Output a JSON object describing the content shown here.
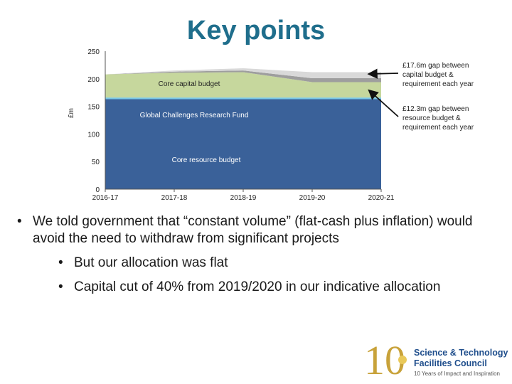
{
  "title": "Key points",
  "chart_data": {
    "type": "area",
    "x": [
      "2016-17",
      "2017-18",
      "2018-19",
      "2019-20",
      "2020-21"
    ],
    "ylabel": "£m",
    "ylim": [
      0,
      250
    ],
    "yticks": [
      0,
      50,
      100,
      150,
      200,
      250
    ],
    "series": [
      {
        "name": "Core resource budget",
        "color": "#3a6199",
        "values": [
          163,
          163,
          163,
          163,
          163
        ]
      },
      {
        "name": "Global Challenges Research Fund",
        "color": "#79c6e6",
        "values": [
          3,
          3,
          3,
          3,
          3
        ]
      },
      {
        "name": "Core capital budget",
        "color": "#c6d79d",
        "values": [
          42,
          45,
          46,
          28,
          28
        ]
      },
      {
        "name": "",
        "color": "#9e9e9e",
        "values": [
          0,
          2,
          3,
          7,
          7
        ]
      },
      {
        "name": "",
        "color": "#d9d9d9",
        "values": [
          0,
          2,
          4,
          11,
          11
        ]
      }
    ],
    "annotations": [
      {
        "text": [
          "£17.6m gap between",
          "capital budget &",
          "requirement each year"
        ]
      },
      {
        "text": [
          "£12.3m gap between",
          "resource budget &",
          "requirement each year"
        ]
      }
    ]
  },
  "bullets": [
    {
      "text": "We told government that “constant volume” (flat-cash plus inflation) would avoid the need to withdraw from significant projects",
      "children": [
        "But our allocation was flat",
        "Capital cut of 40% from 2019/2020 in our indicative allocation"
      ]
    }
  ],
  "logo": {
    "mark": "10",
    "name_line1": "Science & Technology",
    "name_line2": "Facilities Council",
    "tagline": "10 Years of Impact and Inspiration"
  },
  "colors": {
    "title": "#1f6e8c",
    "logo_gold": "#c8a23a",
    "logo_blue": "#1f4e8c"
  }
}
